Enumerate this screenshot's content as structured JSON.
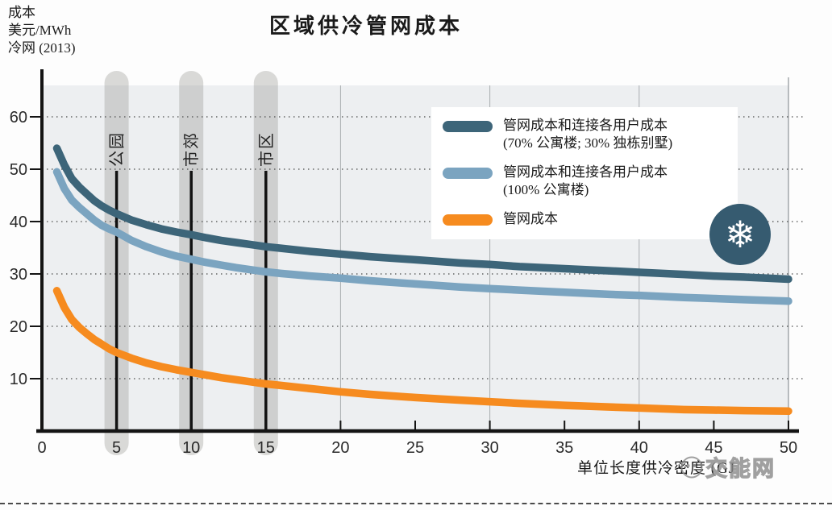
{
  "page": {
    "title": "区域供冷管网成本",
    "y_axis_unit_lines": [
      "成本",
      "美元/MWh",
      "冷网 (2013)"
    ],
    "x_axis_label": "单位长度供冷密度 (GJ",
    "watermark_text": "交能网",
    "snowflake_glyph": "❄"
  },
  "legend": {
    "items": [
      {
        "line1": "管网成本和连接各用户成本",
        "line2": "(70% 公寓楼; 30% 独栋别墅)",
        "color": "#3d6579"
      },
      {
        "line1": "管网成本和连接各用户成本",
        "line2": "(100% 公寓楼)",
        "color": "#7ba4c0"
      },
      {
        "line1": "管网成本",
        "line2": "",
        "color": "#f68b1f"
      }
    ]
  },
  "chart_data": {
    "type": "line",
    "title": "区域供冷管网成本",
    "xlabel": "单位长度供冷密度 (GJ",
    "ylabel": "成本 美元/MWh 冷网 (2013)",
    "xlim": [
      0,
      50
    ],
    "ylim": [
      0,
      66
    ],
    "x_ticks": [
      0,
      5,
      10,
      15,
      20,
      25,
      30,
      35,
      40,
      45,
      50
    ],
    "y_ticks": [
      0,
      10,
      20,
      30,
      40,
      50,
      60
    ],
    "v_gridlines": [
      20,
      30,
      40
    ],
    "grid": "dotted horizontal every 10",
    "legend_position": "upper right",
    "annotations": [
      {
        "x": 5,
        "label": "公园"
      },
      {
        "x": 10,
        "label": "市郊"
      },
      {
        "x": 15,
        "label": "市区"
      }
    ],
    "series": [
      {
        "name": "管网成本和连接各用户成本 (70% 公寓楼; 30% 独栋别墅)",
        "color": "#3d6579",
        "points": [
          [
            1,
            54
          ],
          [
            1.5,
            50.8
          ],
          [
            2,
            48.2
          ],
          [
            2.5,
            46.6
          ],
          [
            3,
            45.3
          ],
          [
            3.5,
            44
          ],
          [
            4,
            43
          ],
          [
            4.5,
            42.2
          ],
          [
            5,
            41.5
          ],
          [
            6,
            40.3
          ],
          [
            7,
            39.4
          ],
          [
            8,
            38.6
          ],
          [
            9,
            38
          ],
          [
            10,
            37.5
          ],
          [
            11,
            36.9
          ],
          [
            12,
            36.4
          ],
          [
            13,
            36
          ],
          [
            14,
            35.6
          ],
          [
            15,
            35.2
          ],
          [
            16,
            34.9
          ],
          [
            18,
            34.3
          ],
          [
            20,
            33.8
          ],
          [
            22,
            33.3
          ],
          [
            25,
            32.7
          ],
          [
            28,
            32.1
          ],
          [
            30,
            31.8
          ],
          [
            32,
            31.4
          ],
          [
            35,
            31
          ],
          [
            38,
            30.6
          ],
          [
            40,
            30.3
          ],
          [
            43,
            29.9
          ],
          [
            45,
            29.6
          ],
          [
            47,
            29.4
          ],
          [
            50,
            29
          ]
        ]
      },
      {
        "name": "管网成本和连接各用户成本 (100% 公寓楼)",
        "color": "#7ba4c0",
        "points": [
          [
            1,
            49.5
          ],
          [
            1.5,
            46.3
          ],
          [
            2,
            44.1
          ],
          [
            2.5,
            42.7
          ],
          [
            3,
            41.5
          ],
          [
            3.5,
            40.3
          ],
          [
            4,
            39.3
          ],
          [
            4.5,
            38.6
          ],
          [
            5,
            38
          ],
          [
            6,
            36.4
          ],
          [
            7,
            35.2
          ],
          [
            8,
            34.2
          ],
          [
            9,
            33.4
          ],
          [
            10,
            32.8
          ],
          [
            11,
            32.2
          ],
          [
            12,
            31.7
          ],
          [
            13,
            31.2
          ],
          [
            14,
            30.8
          ],
          [
            15,
            30.4
          ],
          [
            16,
            30.1
          ],
          [
            18,
            29.6
          ],
          [
            20,
            29.2
          ],
          [
            22,
            28.7
          ],
          [
            25,
            28.1
          ],
          [
            28,
            27.5
          ],
          [
            30,
            27.2
          ],
          [
            32,
            26.9
          ],
          [
            35,
            26.5
          ],
          [
            38,
            26.1
          ],
          [
            40,
            25.9
          ],
          [
            43,
            25.5
          ],
          [
            45,
            25.3
          ],
          [
            47,
            25.1
          ],
          [
            50,
            24.8
          ]
        ]
      },
      {
        "name": "管网成本",
        "color": "#f68b1f",
        "points": [
          [
            1,
            26.8
          ],
          [
            1.5,
            23.6
          ],
          [
            2,
            21.3
          ],
          [
            2.5,
            19.8
          ],
          [
            3,
            18.6
          ],
          [
            3.5,
            17.5
          ],
          [
            4,
            16.6
          ],
          [
            4.5,
            15.7
          ],
          [
            5,
            15
          ],
          [
            6,
            13.9
          ],
          [
            7,
            13
          ],
          [
            8,
            12.3
          ],
          [
            9,
            11.7
          ],
          [
            10,
            11.2
          ],
          [
            11,
            10.7
          ],
          [
            12,
            10.2
          ],
          [
            13,
            9.8
          ],
          [
            14,
            9.4
          ],
          [
            15,
            9
          ],
          [
            16,
            8.7
          ],
          [
            18,
            8.1
          ],
          [
            20,
            7.5
          ],
          [
            22,
            7
          ],
          [
            25,
            6.4
          ],
          [
            28,
            5.9
          ],
          [
            30,
            5.6
          ],
          [
            32,
            5.3
          ],
          [
            35,
            4.9
          ],
          [
            38,
            4.6
          ],
          [
            40,
            4.4
          ],
          [
            43,
            4.1
          ],
          [
            45,
            4
          ],
          [
            47,
            3.9
          ],
          [
            50,
            3.8
          ]
        ]
      }
    ]
  },
  "colors": {
    "plot_bg": "#edeff1",
    "band": "rgba(150,150,142,0.35)",
    "marker_line": "#111111",
    "axis": "#141414",
    "grid": "#4a4a4a",
    "v_grid": "#a9adb0",
    "plot_border": "#8e9498",
    "tick_text": "#2a2a2a",
    "snowflake_bg": "#365b70"
  }
}
